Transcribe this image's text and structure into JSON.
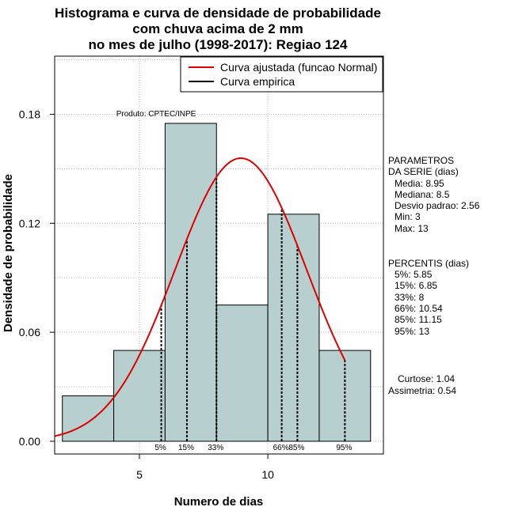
{
  "chart_data": {
    "type": "bar",
    "title_lines": [
      "Histograma e curva de densidade de probabilidade",
      "com chuva acima de 2 mm",
      "no mes de julho (1998-2017): Regiao 124"
    ],
    "xlabel": "Numero de dias",
    "ylabel": "Densidade de probabilidade",
    "xlim": [
      1.7,
      14.5
    ],
    "ylim": [
      -0.007,
      0.212
    ],
    "x_ticks": [
      5,
      10
    ],
    "y_ticks": [
      0.0,
      0.06,
      0.12,
      0.18
    ],
    "y_tick_labels": [
      "0.00",
      "0.06",
      "0.12",
      "0.18"
    ],
    "grid": true,
    "bars": [
      {
        "x0": 2,
        "x1": 4,
        "value": 0.025
      },
      {
        "x0": 4,
        "x1": 6,
        "value": 0.05
      },
      {
        "x0": 6,
        "x1": 8,
        "value": 0.175
      },
      {
        "x0": 8,
        "x1": 10,
        "value": 0.075
      },
      {
        "x0": 10,
        "x1": 12,
        "value": 0.125
      },
      {
        "x0": 12,
        "x1": 14,
        "value": 0.05
      }
    ],
    "bar_color": "#b7cfcf",
    "fitted_curve": {
      "name": "Curva ajustada (funcao Normal)",
      "mean": 8.95,
      "sd": 2.56,
      "x_range": [
        1.7,
        13
      ],
      "color": "#e00000"
    },
    "empirical_curve": {
      "name": "Curva empirica",
      "color": "#000000"
    },
    "percentile_lines": [
      {
        "label": "5%",
        "x": 5.85
      },
      {
        "label": "15%",
        "x": 6.85
      },
      {
        "label": "33%",
        "x": 8
      },
      {
        "label": "66%",
        "x": 10.54
      },
      {
        "label": "85%",
        "x": 11.15
      },
      {
        "label": "95%",
        "x": 13
      }
    ],
    "source_annotation": "Produto: CPTEC/INPE",
    "legend": [
      {
        "label": "Curva ajustada (funcao Normal)",
        "color": "#e00000"
      },
      {
        "label": "Curva empirica",
        "color": "#000000"
      }
    ],
    "legend_position": "top-right"
  },
  "side_panel": {
    "parametros": [
      "PARAMETROS",
      "DA SERIE (dias)",
      "Media: 8.95",
      "Mediana: 8.5",
      "Desvio padrao: 2.56",
      "Min: 3",
      "Max: 13"
    ],
    "percentis": [
      "PERCENTIS (dias)",
      "5%: 5.85",
      "15%: 6.85",
      "33%: 8",
      "66%: 10.54",
      "85%: 11.15",
      "95%: 13"
    ],
    "shape": [
      "Curtose: 1.04",
      "Assimetria: 0.54"
    ]
  }
}
